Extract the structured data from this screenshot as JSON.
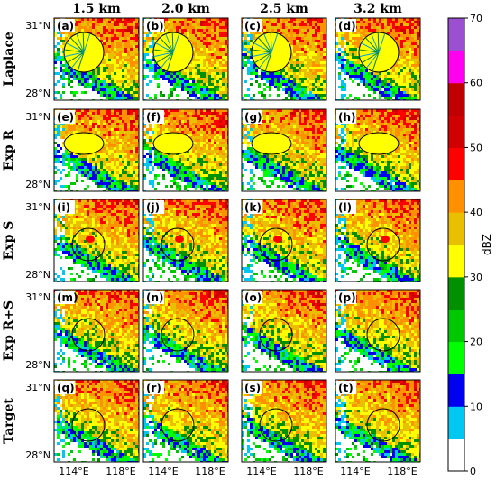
{
  "chart_data": {
    "type": "heatmap",
    "column_titles": [
      "1.5 km",
      "2.0 km",
      "2.5 km",
      "3.2 km"
    ],
    "row_titles": [
      "Laplace",
      "Exp R",
      "Exp S",
      "Exp R+S",
      "Target"
    ],
    "panel_labels": [
      "(a)",
      "(b)",
      "(c)",
      "(d)",
      "(e)",
      "(f)",
      "(g)",
      "(h)",
      "(i)",
      "(j)",
      "(k)",
      "(l)",
      "(m)",
      "(n)",
      "(o)",
      "(p)",
      "(q)",
      "(r)",
      "(s)",
      "(t)"
    ],
    "lat_ticks": [
      "31°N",
      "28°N"
    ],
    "lon_ticks": [
      "114°E",
      "118°E"
    ],
    "colorbar": {
      "label": "dBZ",
      "ticks": [
        0,
        10,
        20,
        30,
        40,
        50,
        60,
        70
      ],
      "range": [
        0,
        70
      ],
      "step": 5,
      "colors": [
        "#ffffff",
        "#00c8f0",
        "#0000f0",
        "#00ff00",
        "#00c800",
        "#009000",
        "#ffff00",
        "#e8c000",
        "#ff9000",
        "#ff0000",
        "#d00000",
        "#c00000",
        "#ff00f0",
        "#9a50d0"
      ]
    }
  }
}
